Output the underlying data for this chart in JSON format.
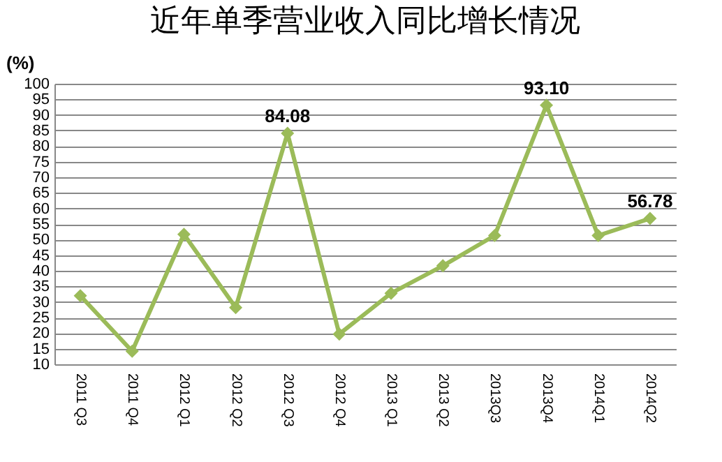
{
  "chart_data": {
    "type": "line",
    "title": "近年单季营业收入同比增长情况",
    "ylabel": "(%)",
    "categories": [
      "2011 Q3",
      "2011 Q4",
      "2012 Q1",
      "2012 Q2",
      "2012 Q3",
      "2012 Q4",
      "2013 Q1",
      "2013 Q2",
      "2013Q3",
      "2013Q4",
      "2014Q1",
      "2014Q2"
    ],
    "series": [
      {
        "color": "#9bbb59",
        "values": [
          32,
          14.2,
          51.7,
          28.2,
          84.08,
          19.7,
          32.8,
          41.6,
          51.3,
          93.1,
          51.3,
          56.78
        ],
        "value_labels": [
          null,
          null,
          null,
          null,
          "84.08",
          null,
          null,
          null,
          null,
          "93.10",
          null,
          "56.78"
        ]
      }
    ],
    "ylim": [
      10,
      100
    ],
    "yticks": [
      10,
      15,
      20,
      25,
      30,
      35,
      40,
      45,
      50,
      55,
      60,
      65,
      70,
      75,
      80,
      85,
      90,
      95,
      100
    ],
    "grid": "y",
    "marker": "diamond",
    "line_style": "solid"
  }
}
